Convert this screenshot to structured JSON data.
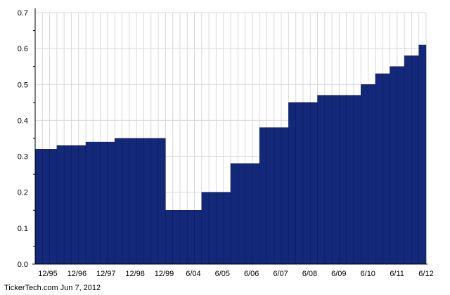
{
  "footer": "TickerTech.com Jun 7, 2012",
  "colors": {
    "bar": "#14287a",
    "grid": "#d8d8d8",
    "axis": "#000000",
    "background": "#ffffff"
  },
  "chart_data": {
    "type": "bar",
    "title": "",
    "xlabel": "",
    "ylabel": "",
    "ylim": [
      0,
      0.7
    ],
    "yticks": [
      "0.0",
      "0.1",
      "0.2",
      "0.3",
      "0.4",
      "0.5",
      "0.6",
      "0.7"
    ],
    "xticks": [
      "12/95",
      "12/96",
      "12/97",
      "12/98",
      "12/99",
      "6/04",
      "6/05",
      "6/06",
      "6/07",
      "6/08",
      "6/09",
      "6/10",
      "6/11",
      "6/12"
    ],
    "grid": true,
    "legend": "none",
    "values": [
      0.32,
      0.32,
      0.32,
      0.33,
      0.33,
      0.33,
      0.33,
      0.34,
      0.34,
      0.34,
      0.34,
      0.35,
      0.35,
      0.35,
      0.35,
      0.35,
      0.35,
      0.35,
      0.15,
      0.15,
      0.15,
      0.15,
      0.15,
      0.2,
      0.2,
      0.2,
      0.2,
      0.28,
      0.28,
      0.28,
      0.28,
      0.38,
      0.38,
      0.38,
      0.38,
      0.45,
      0.45,
      0.45,
      0.45,
      0.47,
      0.47,
      0.47,
      0.47,
      0.47,
      0.47,
      0.5,
      0.5,
      0.53,
      0.53,
      0.55,
      0.55,
      0.58,
      0.58,
      0.61
    ]
  }
}
